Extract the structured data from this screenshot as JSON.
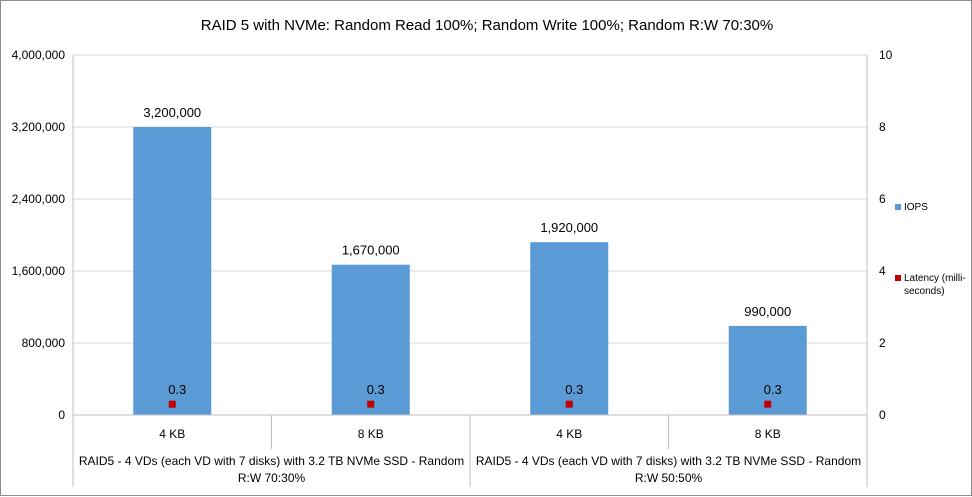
{
  "chart_data": {
    "type": "bar",
    "title": "RAID 5 with NVMe: Random Read 100%; Random Write 100%; Random R:W 70:30%",
    "categories": [
      "4 KB",
      "8 KB",
      "4 KB",
      "8 KB"
    ],
    "groups": [
      {
        "label_lines": [
          "RAID5 - 4 VDs (each VD with 7 disks) with 3.2 TB NVMe SSD - Random",
          "R:W 70:30%"
        ],
        "categories": [
          "4 KB",
          "8 KB"
        ]
      },
      {
        "label_lines": [
          "RAID5 - 4 VDs (each VD with 7 disks) with 3.2 TB NVMe SSD - Random",
          "R:W 50:50%"
        ],
        "categories": [
          "4 KB",
          "8 KB"
        ]
      }
    ],
    "series": [
      {
        "name": "IOPS",
        "kind": "bar",
        "axis": "left",
        "color": "#5b9bd5",
        "values": [
          3200000,
          1670000,
          1920000,
          990000
        ],
        "data_labels": [
          "3,200,000",
          "1,670,000",
          "1,920,000",
          "990,000"
        ]
      },
      {
        "name": "Latency (milli-seconds)",
        "legend_lines": [
          "Latency (milli-",
          "seconds)"
        ],
        "kind": "marker",
        "axis": "right",
        "color": "#c00000",
        "values": [
          0.3,
          0.3,
          0.3,
          0.3
        ],
        "data_labels": [
          "0.3",
          "0.3",
          "0.3",
          "0.3"
        ]
      }
    ],
    "y_left": {
      "ylim": [
        0,
        4000000
      ],
      "ticks": [
        0,
        800000,
        1600000,
        2400000,
        3200000,
        4000000
      ],
      "tick_labels": [
        "0",
        "800,000",
        "1,600,000",
        "2,400,000",
        "3,200,000",
        "4,000,000"
      ]
    },
    "y_right": {
      "ylim": [
        0,
        10
      ],
      "ticks": [
        0,
        2,
        4,
        6,
        8,
        10
      ],
      "tick_labels": [
        "0",
        "2",
        "4",
        "6",
        "8",
        "10"
      ]
    },
    "grid": true,
    "legend_position": "right"
  }
}
